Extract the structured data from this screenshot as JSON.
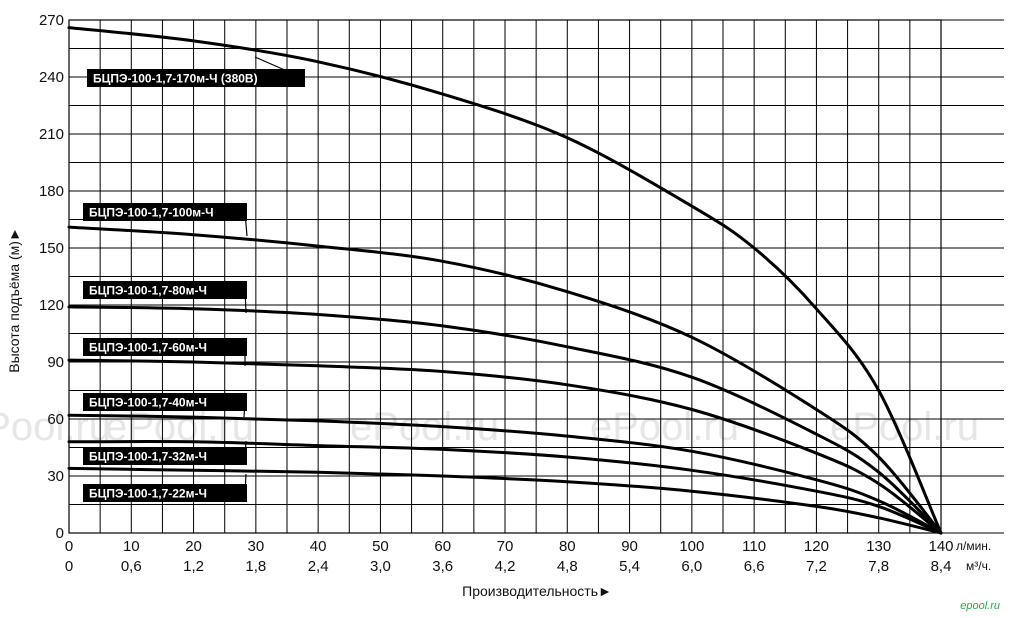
{
  "chart_data": {
    "type": "line",
    "xlabel": "Производительность►",
    "ylabel": "Высота подъёма (м)►",
    "x_unit_primary": "л/мин.",
    "x_unit_secondary": "м³/ч.",
    "xlim": [
      0,
      140
    ],
    "ylim": [
      0,
      270
    ],
    "x_ticks": [
      "0",
      "10",
      "20",
      "30",
      "40",
      "50",
      "60",
      "70",
      "80",
      "90",
      "100",
      "110",
      "120",
      "130",
      "140"
    ],
    "x_ticks_secondary": [
      "0",
      "0,6",
      "1,2",
      "1,8",
      "2,4",
      "3,0",
      "3,6",
      "4,2",
      "4,8",
      "5,4",
      "6,0",
      "6,6",
      "7,2",
      "7,8",
      "8,4"
    ],
    "y_ticks": [
      "0",
      "30",
      "60",
      "90",
      "120",
      "150",
      "180",
      "210",
      "240",
      "270"
    ],
    "grid": true,
    "series": [
      {
        "name": "БЦПЭ-100-1,7-170м-Ч (380В)",
        "x": [
          0,
          20,
          40,
          60,
          80,
          100,
          110,
          120,
          130,
          140
        ],
        "y": [
          266,
          259,
          248,
          231,
          208,
          172,
          150,
          118,
          75,
          0
        ]
      },
      {
        "name": "БЦПЭ-100-1,7-100м-Ч",
        "x": [
          0,
          20,
          40,
          60,
          80,
          100,
          120,
          130,
          140
        ],
        "y": [
          161,
          157,
          151,
          143,
          127,
          103,
          65,
          40,
          0
        ]
      },
      {
        "name": "БЦПЭ-100-1,7-80м-Ч",
        "x": [
          0,
          20,
          40,
          60,
          80,
          100,
          120,
          130,
          140
        ],
        "y": [
          119,
          118,
          115,
          109,
          98,
          82,
          52,
          32,
          0
        ]
      },
      {
        "name": "БЦПЭ-100-1,7-60м-Ч",
        "x": [
          0,
          20,
          40,
          60,
          80,
          100,
          120,
          130,
          140
        ],
        "y": [
          91,
          90,
          88,
          85,
          78,
          65,
          42,
          26,
          0
        ]
      },
      {
        "name": "БЦПЭ-100-1,7-40м-Ч",
        "x": [
          0,
          20,
          40,
          60,
          80,
          100,
          120,
          130,
          140
        ],
        "y": [
          62,
          61,
          59,
          56,
          51,
          43,
          28,
          17,
          0
        ]
      },
      {
        "name": "БЦПЭ-100-1,7-32м-Ч",
        "x": [
          0,
          20,
          40,
          60,
          80,
          100,
          120,
          130,
          140
        ],
        "y": [
          48,
          48,
          46,
          44,
          40,
          33,
          22,
          14,
          0
        ]
      },
      {
        "name": "БЦПЭ-100-1,7-22м-Ч",
        "x": [
          0,
          20,
          40,
          60,
          80,
          100,
          120,
          130,
          140
        ],
        "y": [
          34,
          33,
          32,
          30,
          27,
          22,
          14,
          8,
          0
        ]
      }
    ]
  },
  "watermark": "ePool.ru",
  "logo": "epool.ru"
}
